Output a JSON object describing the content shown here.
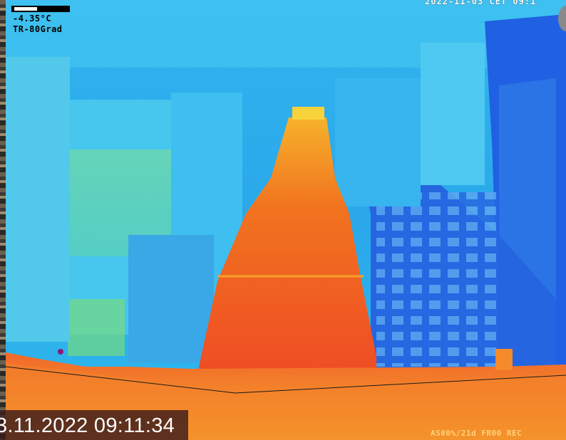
{
  "overlay": {
    "temperature": "-4.35°C",
    "mode": "TR-80Grad",
    "top_right_datetime": "2022-11-03 CET 09:1",
    "bottom_timestamp": "3.11.2022 09:11:34",
    "status": "AS00%/21d FR00 REC"
  },
  "colors": {
    "cold": "#1e6fe6",
    "cool": "#2fb8f0",
    "mild": "#8ee27a",
    "warm": "#f7a520",
    "hot": "#f2581f"
  }
}
